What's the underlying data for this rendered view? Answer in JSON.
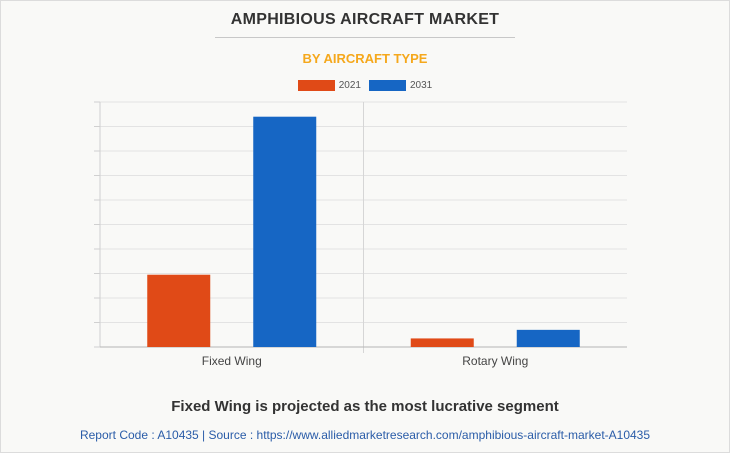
{
  "chart_data": {
    "type": "bar",
    "title": "AMPHIBIOUS AIRCRAFT MARKET",
    "subtitle": "BY AIRCRAFT TYPE",
    "categories": [
      "Fixed Wing",
      "Rotary Wing"
    ],
    "series": [
      {
        "name": "2021",
        "color": "#e04a17",
        "values": [
          29.5,
          3.5
        ]
      },
      {
        "name": "2031",
        "color": "#1666c4",
        "values": [
          94,
          7
        ]
      }
    ],
    "ylim": [
      0,
      100
    ],
    "grid": true,
    "legend_position": "top-center",
    "xlabel": "",
    "ylabel": ""
  },
  "footer": {
    "tagline": "Fixed Wing is projected as the most lucrative segment",
    "source": "Report Code : A10435  |  Source : https://www.alliedmarketresearch.com/amphibious-aircraft-market-A10435"
  }
}
